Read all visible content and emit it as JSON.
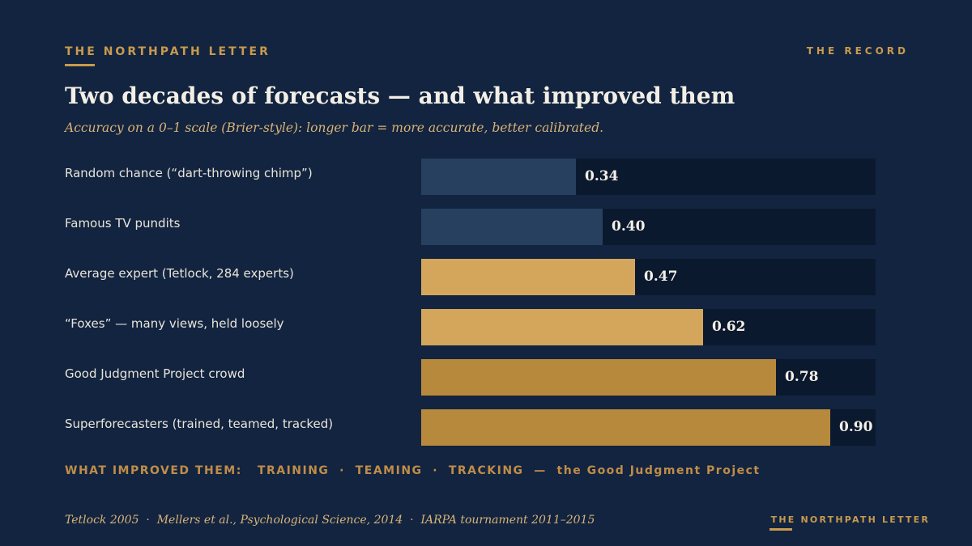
{
  "header": {
    "brand": "THE NORTHPATH LETTER",
    "section": "THE RECORD",
    "title": "Two decades of forecasts — and what improved them",
    "subtitle": "Accuracy on a 0–1 scale (Brier-style): longer bar = more accurate, better calibrated."
  },
  "chart_data": {
    "type": "bar",
    "orientation": "horizontal",
    "categories": [
      "Random chance (“dart-throwing chimp”)",
      "Famous TV pundits",
      "Average expert (Tetlock, 284 experts)",
      "“Foxes” — many views, held loosely",
      "Good Judgment Project crowd",
      "Superforecasters (trained, teamed, tracked)"
    ],
    "values": [
      0.34,
      0.4,
      0.47,
      0.62,
      0.78,
      0.9
    ],
    "value_labels": [
      "0.34",
      "0.40",
      "0.47",
      "0.62",
      "0.78",
      "0.90"
    ],
    "bar_colors": [
      "#27405f",
      "#27405f",
      "#d3a65c",
      "#d3a65c",
      "#b7893d",
      "#b7893d"
    ],
    "xlim": [
      0,
      1
    ],
    "track_color": "#0b192f"
  },
  "improve_line": "WHAT IMPROVED THEM:   TRAINING  ·  TEAMING  ·  TRACKING  —  the Good Judgment Project",
  "footer": {
    "sources": "Tetlock 2005  ·  Mellers et al., Psychological Science, 2014  ·  IARPA tournament 2011–2015",
    "brand": "THE NORTHPATH LETTER"
  },
  "colors": {
    "background": "#12243f",
    "accent": "#c99a4e",
    "subtitle": "#d9b27a",
    "text": "#e9e4da"
  }
}
